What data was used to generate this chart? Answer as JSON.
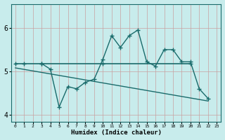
{
  "xlabel": "Humidex (Indice chaleur)",
  "bg_color": "#c8ecec",
  "line_color": "#1a6b6b",
  "grid_color": "#c8a0a0",
  "x_data": [
    0,
    1,
    2,
    3,
    4,
    5,
    6,
    7,
    8,
    9,
    10,
    11,
    12,
    13,
    14,
    15,
    16,
    17,
    18,
    19,
    20,
    21,
    22,
    23
  ],
  "flat_line_x": [
    0,
    1,
    2,
    3,
    4,
    5,
    6,
    7,
    8,
    9,
    10,
    11,
    12,
    13,
    14,
    15,
    16,
    17,
    18,
    19,
    20
  ],
  "flat_line_y": [
    5.18,
    5.18,
    5.18,
    5.18,
    5.18,
    5.18,
    5.18,
    5.18,
    5.18,
    5.18,
    5.18,
    5.18,
    5.18,
    5.18,
    5.18,
    5.18,
    5.18,
    5.18,
    5.18,
    5.18,
    5.18
  ],
  "curve_x": [
    3,
    4,
    5,
    6,
    7,
    8,
    9,
    10,
    11,
    12,
    13,
    14,
    15,
    16,
    17,
    18,
    19,
    20,
    21,
    22
  ],
  "curve_y": [
    5.18,
    5.05,
    4.18,
    4.65,
    4.6,
    4.75,
    4.82,
    5.28,
    5.82,
    5.55,
    5.82,
    5.95,
    5.22,
    5.12,
    5.5,
    5.5,
    5.22,
    5.22,
    4.6,
    4.38
  ],
  "trend_x": [
    0,
    22
  ],
  "trend_y": [
    5.08,
    4.32
  ],
  "marker_flat_x": [
    0,
    1,
    3,
    10,
    20
  ],
  "marker_flat_y": [
    5.18,
    5.18,
    5.18,
    5.18,
    5.18
  ],
  "marker_curve_x": [
    3,
    4,
    5,
    6,
    7,
    8,
    9,
    10,
    11,
    12,
    13,
    14,
    15,
    16,
    17,
    18,
    19,
    20,
    21,
    22
  ],
  "marker_curve_y": [
    5.18,
    5.05,
    4.18,
    4.65,
    4.6,
    4.75,
    4.82,
    5.28,
    5.82,
    5.55,
    5.82,
    5.95,
    5.22,
    5.12,
    5.5,
    5.5,
    5.22,
    5.22,
    4.6,
    4.38
  ],
  "ylim": [
    3.85,
    6.55
  ],
  "xlim": [
    -0.5,
    23.5
  ],
  "yticks": [
    4,
    5,
    6
  ],
  "xticks": [
    0,
    1,
    2,
    3,
    4,
    5,
    6,
    7,
    8,
    9,
    10,
    11,
    12,
    13,
    14,
    15,
    16,
    17,
    18,
    19,
    20,
    21,
    22,
    23
  ]
}
